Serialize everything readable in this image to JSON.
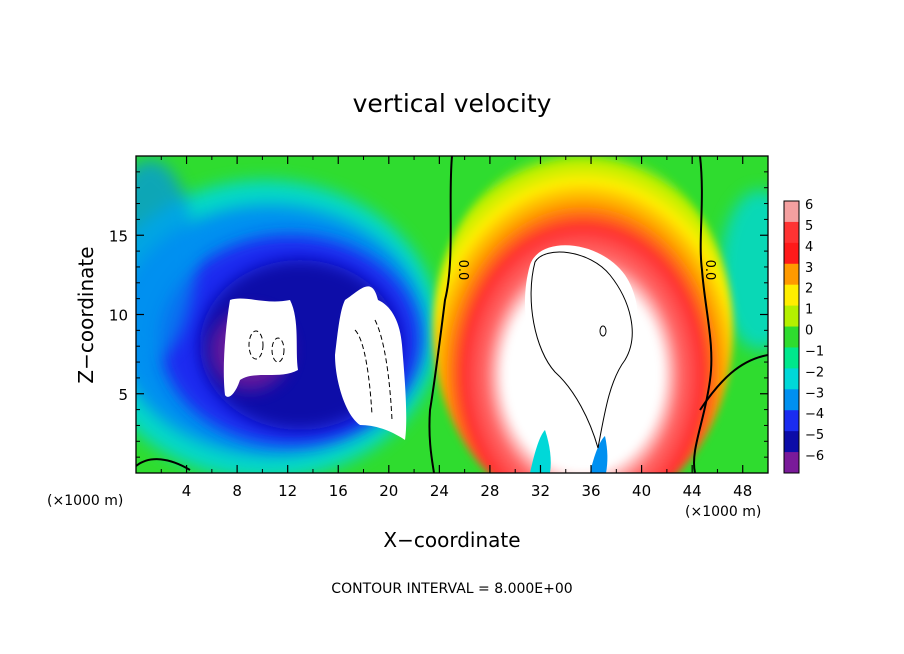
{
  "chart_data": {
    "type": "heatmap",
    "title": "vertical velocity",
    "xlabel": "X−coordinate",
    "ylabel": "Z−coordinate",
    "x_unit_left": "(×1000 m)",
    "x_unit_right": "(×1000 m)",
    "xlim": [
      0,
      50
    ],
    "ylim": [
      0,
      20
    ],
    "x_ticks": [
      4,
      8,
      12,
      16,
      20,
      24,
      28,
      32,
      36,
      40,
      44,
      48
    ],
    "x_tick_labels": [
      "4",
      "8",
      "12",
      "16",
      "20",
      "24",
      "28",
      "32",
      "36",
      "40",
      "44",
      "48"
    ],
    "y_ticks": [
      5,
      10,
      15
    ],
    "y_tick_labels": [
      "5",
      "10",
      "15"
    ],
    "colorbar": {
      "values": [
        6,
        5,
        4,
        3,
        2,
        1,
        0,
        -1,
        -2,
        -3,
        -4,
        -5,
        -6
      ],
      "labels": [
        "6",
        "5",
        "4",
        "3",
        "2",
        "1",
        "0",
        "−1",
        "−2",
        "−3",
        "−4",
        "−5",
        "−6"
      ],
      "colors": [
        "#f4a0a0",
        "#ff3333",
        "#ff1a1a",
        "#ff9a00",
        "#ffee00",
        "#b4f000",
        "#2fdc2f",
        "#00e88c",
        "#00d8d8",
        "#0090f0",
        "#1a2cf0",
        "#0c0ca8",
        "#7a1a9a"
      ]
    },
    "zero_contour_labels": [
      "0.0",
      "0.0"
    ],
    "contour_interval_text": "CONTOUR INTERVAL = 8.000E+00"
  }
}
